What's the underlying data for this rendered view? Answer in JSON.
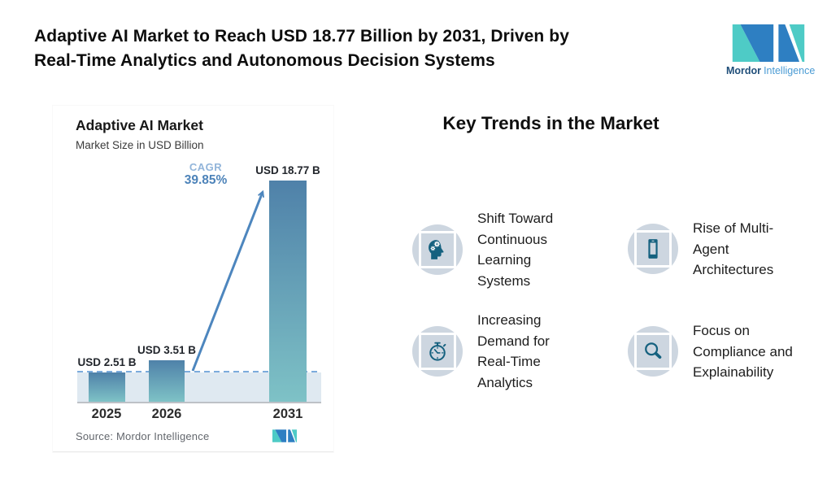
{
  "page": {
    "title": "Adaptive AI Market to Reach USD 18.77 Billion by 2031, Driven by\nReal-Time Analytics and Autonomous Decision Systems"
  },
  "logo": {
    "brand_bold": "Mordor",
    "brand_light": "Intelligence",
    "mark_blue": "#2e7fc2",
    "mark_teal": "#4ecbc6"
  },
  "chart_data": {
    "type": "bar",
    "title": "Adaptive AI Market",
    "subtitle": "Market Size in USD Billion",
    "categories": [
      "2025",
      "2026",
      "2031"
    ],
    "values": [
      2.51,
      3.51,
      18.77
    ],
    "bar_labels": [
      "USD 2.51 B",
      "USD 3.51 B",
      "USD 18.77 B"
    ],
    "cagr": {
      "label": "CAGR",
      "value": "39.85%"
    },
    "source": "Source: Mordor Intelligence",
    "ylim": [
      0,
      18.77
    ],
    "baseline_value": 2.51,
    "grid": false,
    "bar_gradient_top": "#4f81a9",
    "bar_gradient_bottom": "#7ec2c6",
    "dashed_line_color": "#7cabdc",
    "band_color": "#dfe9f1",
    "arrow_color": "#4d86be"
  },
  "trends": {
    "heading": "Key Trends in the Market",
    "icon_glyph_color": "#15617f",
    "icon_circle_color": "#cdd6e0",
    "items": [
      {
        "icon": "head-gears-icon",
        "label": "Shift Toward\nContinuous\nLearning\nSystems"
      },
      {
        "icon": "smartphone-icon",
        "label": "Rise of Multi-\nAgent\nArchitectures"
      },
      {
        "icon": "stopwatch-icon",
        "label": "Increasing\nDemand for\nReal-Time\nAnalytics"
      },
      {
        "icon": "magnifier-icon",
        "label": "Focus on\nCompliance and\nExplainability"
      }
    ]
  }
}
